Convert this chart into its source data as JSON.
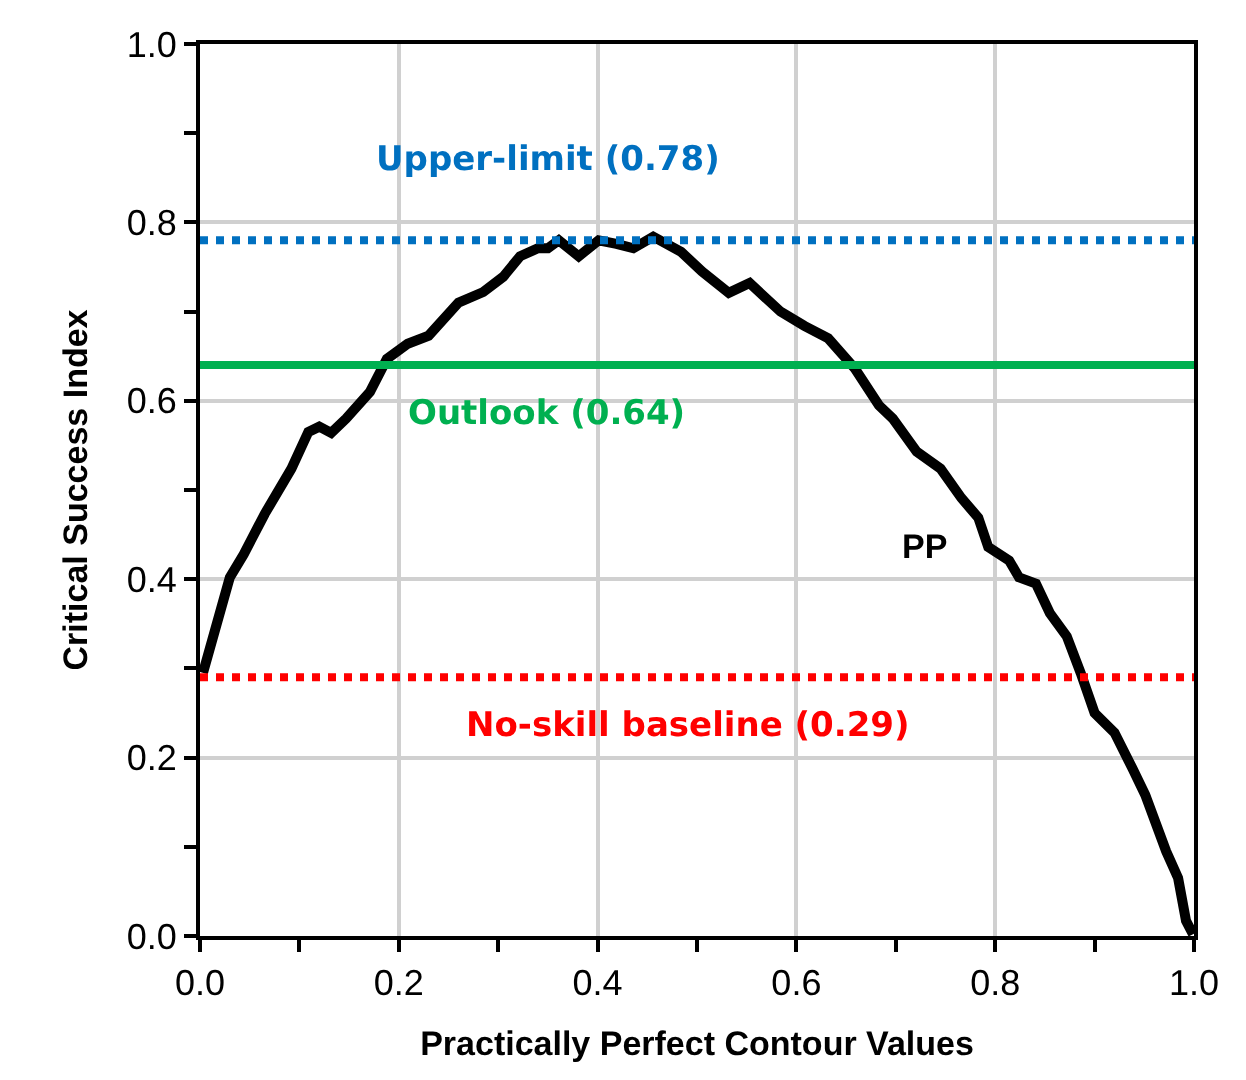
{
  "chart_data": {
    "type": "line",
    "xlabel": "Practically Perfect Contour Values",
    "ylabel": "Critical Success Index",
    "xlim": [
      0,
      1
    ],
    "ylim": [
      0,
      1
    ],
    "xticks": [
      {
        "value": 0,
        "label": "0.0"
      },
      0.2,
      0.4,
      0.6,
      0.8,
      {
        "value": 1,
        "label": "1.0"
      },
      {
        "value": 0.1,
        "label": null
      },
      {
        "value": 0.3,
        "label": null
      },
      {
        "value": 0.5,
        "label": null
      },
      {
        "value": 0.7,
        "label": null
      },
      {
        "value": 0.9,
        "label": null
      }
    ],
    "yticks": [
      {
        "value": 0,
        "label": "0.0"
      },
      0.2,
      0.4,
      0.6,
      0.8,
      {
        "value": 1,
        "label": "1.0"
      },
      {
        "value": 0.1,
        "label": null
      },
      {
        "value": 0.3,
        "label": null
      },
      {
        "value": 0.5,
        "label": null
      },
      {
        "value": 0.7,
        "label": null
      },
      {
        "value": 0.9,
        "label": null
      }
    ],
    "grid": true,
    "legend": false,
    "marker": "none",
    "line_style": "solid",
    "series": [
      {
        "name": "PP",
        "color": "#000000",
        "x": [
          0.003,
          0.03,
          0.044,
          0.065,
          0.092,
          0.109,
          0.12,
          0.132,
          0.147,
          0.171,
          0.188,
          0.209,
          0.23,
          0.26,
          0.285,
          0.305,
          0.322,
          0.34,
          0.35,
          0.361,
          0.381,
          0.401,
          0.419,
          0.436,
          0.456,
          0.484,
          0.505,
          0.532,
          0.553,
          0.584,
          0.608,
          0.632,
          0.659,
          0.683,
          0.697,
          0.721,
          0.745,
          0.766,
          0.783,
          0.793,
          0.814,
          0.824,
          0.841,
          0.855,
          0.872,
          0.886,
          0.9,
          0.92,
          0.938,
          0.951,
          0.972,
          0.984,
          0.992,
          0.999
        ],
        "values": [
          0.295,
          0.402,
          0.428,
          0.473,
          0.524,
          0.565,
          0.571,
          0.564,
          0.58,
          0.61,
          0.647,
          0.664,
          0.673,
          0.71,
          0.722,
          0.739,
          0.762,
          0.771,
          0.771,
          0.78,
          0.762,
          0.78,
          0.776,
          0.771,
          0.784,
          0.767,
          0.745,
          0.721,
          0.732,
          0.7,
          0.684,
          0.67,
          0.636,
          0.595,
          0.58,
          0.543,
          0.524,
          0.491,
          0.469,
          0.436,
          0.421,
          0.402,
          0.395,
          0.362,
          0.336,
          0.295,
          0.25,
          0.228,
          0.188,
          0.158,
          0.095,
          0.065,
          0.017,
          0.002
        ]
      }
    ],
    "ref_lines": [
      {
        "axis": "y",
        "value": 0.78,
        "label": "Upper-limit (0.78)",
        "color": "#0070c0",
        "line_style": "dotted"
      },
      {
        "axis": "y",
        "value": 0.64,
        "label": "Outlook (0.64)",
        "color": "#00b050",
        "line_style": "solid"
      },
      {
        "axis": "y",
        "value": 0.29,
        "label": "No-skill baseline (0.29)",
        "color": "#ff0000",
        "line_style": "dotted"
      }
    ]
  }
}
